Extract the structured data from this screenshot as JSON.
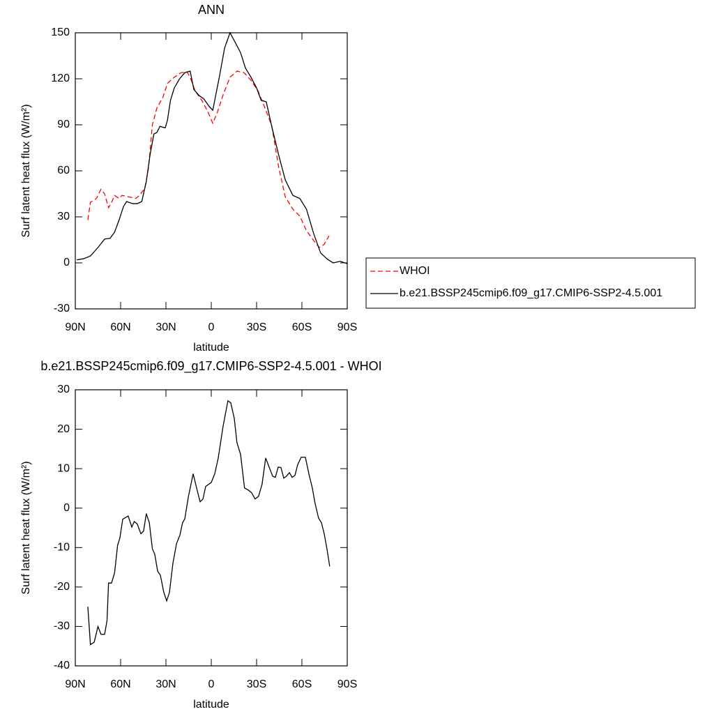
{
  "chart_data": [
    {
      "type": "line",
      "title": "ANN",
      "x_label": "latitude",
      "y_label": "Surf latent heat flux (W/m²)",
      "xlim": [
        90,
        -90
      ],
      "xticks": [
        {
          "value": 90,
          "label": "90N"
        },
        {
          "value": 60,
          "label": "60N"
        },
        {
          "value": 30,
          "label": "30N"
        },
        0,
        {
          "value": -30,
          "label": "30S"
        },
        {
          "value": -60,
          "label": "60S"
        },
        {
          "value": -90,
          "label": "90S"
        }
      ],
      "ylim": [
        -30,
        150
      ],
      "yticks": [
        150,
        120,
        90,
        60,
        30,
        0,
        -30
      ],
      "legend_position": "right",
      "series": [
        {
          "name": "WHOI",
          "color": "#ff0000",
          "dashed": true,
          "x": [
            81.7,
            80,
            76,
            73,
            70.6,
            68,
            66,
            64,
            61,
            59,
            54.5,
            50,
            47.5,
            44,
            41.5,
            39,
            36,
            32,
            29,
            24.5,
            20,
            16,
            14,
            10.6,
            6,
            2.3,
            -1,
            -4.2,
            -8,
            -12.4,
            -17,
            -21.7,
            -26.3,
            -31,
            -35.5,
            -40,
            -44.7,
            -49,
            -54,
            -58.6,
            -63,
            -67.8,
            -71.5,
            -74.7,
            -78
          ],
          "values": [
            28,
            39.5,
            42,
            48,
            45,
            36,
            39.5,
            44,
            42,
            44,
            43,
            42,
            44,
            48.6,
            62,
            90,
            101,
            108,
            117,
            121,
            124,
            124.5,
            121,
            112,
            105.5,
            98.6,
            91,
            98.6,
            110,
            121,
            125,
            124,
            119,
            112,
            101,
            89.5,
            62,
            43,
            35,
            30.5,
            21,
            14.5,
            10,
            12,
            17.7
          ]
        },
        {
          "name": "b.e21.BSSP245cmip6.f09_g17.CMIP6-SSP2-4.5.001",
          "color": "#000000",
          "dashed": false,
          "x": [
            89,
            84.5,
            80,
            75,
            70.6,
            67,
            64,
            61,
            58,
            56,
            52,
            49,
            46,
            43,
            40.6,
            38,
            36,
            34,
            30.5,
            29,
            27,
            24.5,
            21,
            17.5,
            14,
            11.5,
            8,
            5,
            1.4,
            -1,
            -5.5,
            -8.8,
            -12.4,
            -15.7,
            -19.4,
            -22.6,
            -26.3,
            -30,
            -33,
            -36.4,
            -40,
            -44.7,
            -49,
            -54,
            -58.6,
            -63,
            -67.8,
            -72.4,
            -77,
            -80.7,
            -85.4,
            -90
          ],
          "values": [
            2,
            2.7,
            4.5,
            10,
            15.5,
            16,
            20,
            28,
            37,
            40,
            38.6,
            38.6,
            40,
            53,
            70,
            84,
            85,
            89,
            88,
            93,
            106,
            114,
            120,
            124,
            125,
            113,
            109,
            107,
            102,
            99.5,
            122,
            140,
            150,
            144,
            137,
            127,
            121,
            114,
            106,
            105,
            89,
            70,
            54,
            44,
            42,
            35,
            19,
            6.4,
            2.3,
            0,
            1,
            -0.5
          ]
        }
      ]
    },
    {
      "type": "line",
      "title": "b.e21.BSSP245cmip6.f09_g17.CMIP6-SSP2-4.5.001 - WHOI",
      "x_label": "latitude",
      "y_label": "Surf latent heat flux (W/m²)",
      "xlim": [
        90,
        -90
      ],
      "xticks": [
        {
          "value": 90,
          "label": "90N"
        },
        {
          "value": 60,
          "label": "60N"
        },
        {
          "value": 30,
          "label": "30N"
        },
        0,
        {
          "value": -30,
          "label": "30S"
        },
        {
          "value": -60,
          "label": "60S"
        },
        {
          "value": -90,
          "label": "90S"
        }
      ],
      "ylim": [
        -40,
        30
      ],
      "yticks": [
        30,
        20,
        10,
        0,
        -10,
        -20,
        -30,
        -40
      ],
      "series": [
        {
          "color": "#000000",
          "dashed": false,
          "x": [
            81.7,
            80,
            77.5,
            75,
            73,
            70.6,
            69,
            68,
            66,
            64,
            62,
            60.5,
            58.6,
            55,
            52.6,
            51,
            49,
            46.6,
            44.8,
            43,
            41,
            39,
            37.4,
            35.5,
            33.7,
            31.4,
            29.5,
            27.7,
            25.4,
            23,
            20.8,
            19,
            17.5,
            15.2,
            12,
            9.7,
            7.4,
            5.5,
            3.7,
            0,
            -2.3,
            -4.6,
            -7.8,
            -11,
            -12.9,
            -15.2,
            -17,
            -19.4,
            -22,
            -24.4,
            -26.7,
            -29,
            -31.3,
            -33.6,
            -36,
            -38.3,
            -40.6,
            -42.4,
            -44.3,
            -46.1,
            -48,
            -49.8,
            -51.7,
            -53.5,
            -55.4,
            -57.2,
            -59.5,
            -62.3,
            -64.6,
            -66.9,
            -68.7,
            -71,
            -72.9,
            -74.7,
            -76.6,
            -78.4
          ],
          "values": [
            -25,
            -34.6,
            -34,
            -30,
            -32,
            -32,
            -28.5,
            -19,
            -19,
            -16.4,
            -9.4,
            -7.6,
            -2.8,
            -2,
            -4.8,
            -3.4,
            -4,
            -6.5,
            -5.8,
            -1.4,
            -3.7,
            -10.3,
            -11.7,
            -16,
            -17,
            -21.4,
            -23.5,
            -21.4,
            -14,
            -9,
            -6.9,
            -3.7,
            -2.7,
            2.8,
            8.7,
            5.1,
            1.6,
            2.3,
            5.5,
            6.5,
            8.7,
            12.7,
            20.7,
            27.2,
            26.7,
            22.8,
            16.6,
            13.6,
            5.1,
            4.6,
            3.9,
            2.3,
            3,
            6,
            12.7,
            10.4,
            8.1,
            7.8,
            10.4,
            10.3,
            7.6,
            8.1,
            9,
            7.8,
            8.3,
            11,
            12.9,
            12.9,
            8.7,
            5.1,
            1.2,
            -2.5,
            -3.7,
            -6.4,
            -10.4,
            -14.8
          ]
        }
      ]
    }
  ]
}
